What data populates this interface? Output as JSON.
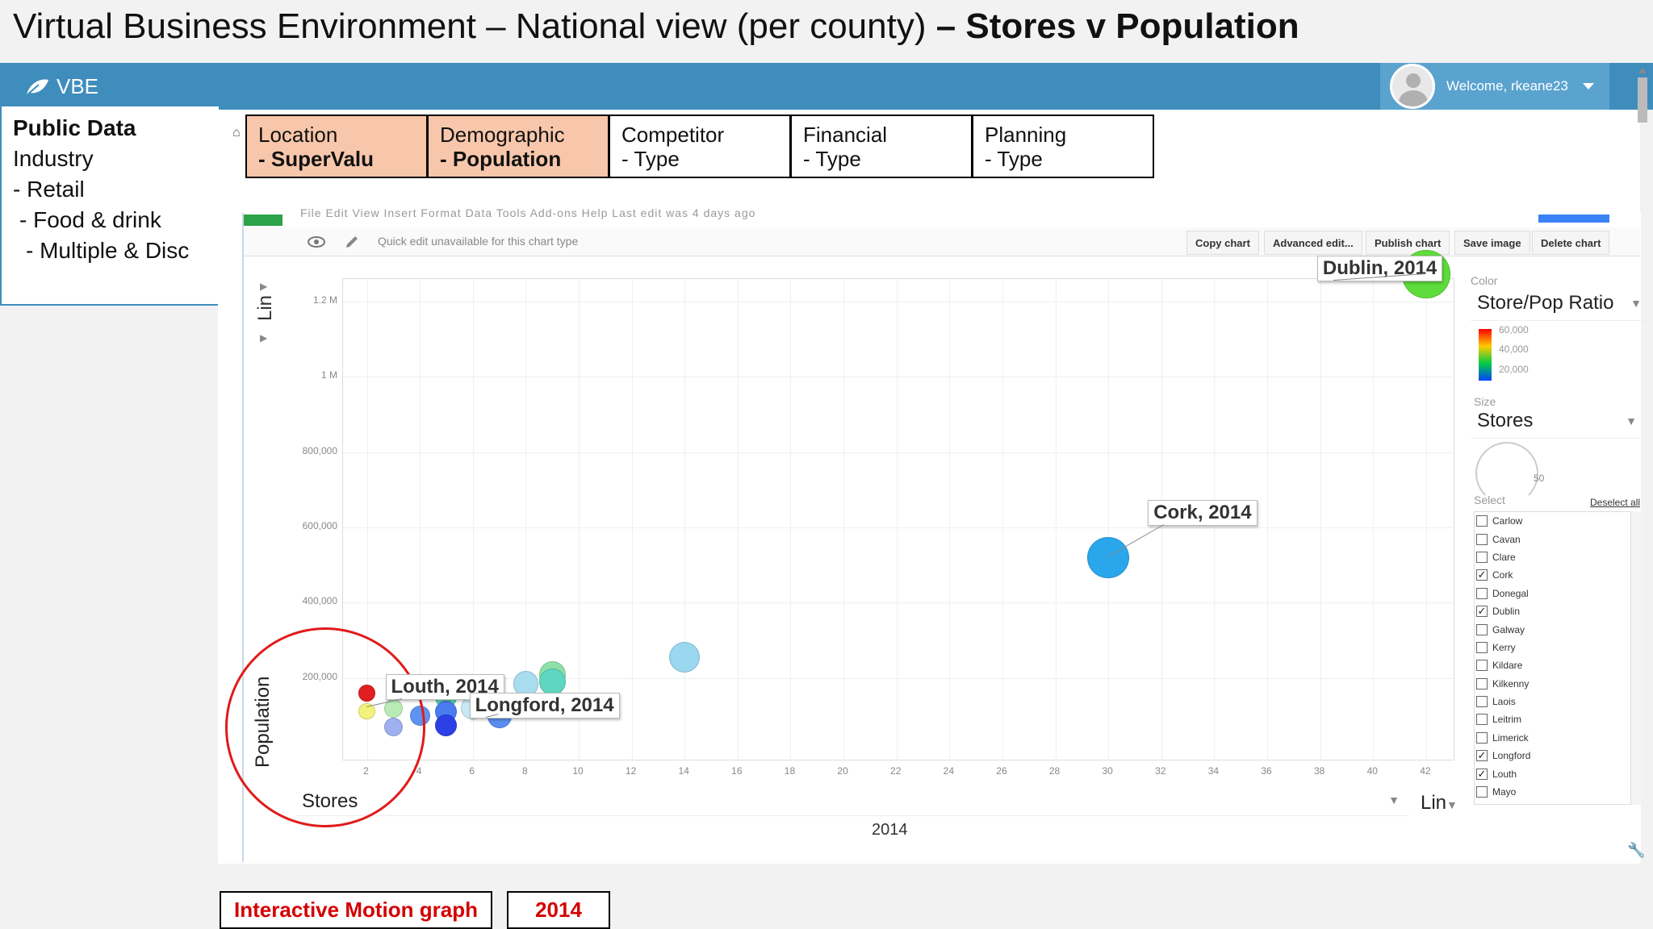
{
  "slide": {
    "title_prefix": "Virtual Business Environment – National view (per county)",
    "title_bold": " – Stores v Population"
  },
  "topbar": {
    "brand": "VBE",
    "welcome": "Welcome, rkeane23"
  },
  "leftbox": {
    "heading": "Public Data",
    "lines": [
      "Industry",
      "- Retail",
      " - Food & drink",
      "  - Multiple & Disc"
    ]
  },
  "tabs": [
    {
      "title": "Location",
      "sub": "- SuperValu"
    },
    {
      "title": "Demographic",
      "sub": "- Population"
    },
    {
      "title": "Competitor",
      "sub": "- Type"
    },
    {
      "title": "Financial",
      "sub": "- Type"
    },
    {
      "title": "Planning",
      "sub": "- Type"
    }
  ],
  "toolbar": {
    "quick_edit": "Quick edit unavailable for this chart type",
    "buttons": [
      "Copy chart",
      "Advanced edit...",
      "Publish chart",
      "Save image",
      "Delete chart"
    ]
  },
  "chart_data": {
    "type": "scatter",
    "xlabel": "Stores",
    "ylabel": "Population",
    "x_scale": "Lin",
    "y_scale": "Lin",
    "time_label": "2014",
    "x_ticks": [
      2,
      4,
      6,
      8,
      10,
      12,
      14,
      16,
      18,
      20,
      22,
      24,
      26,
      28,
      30,
      32,
      34,
      36,
      38,
      40,
      42
    ],
    "y_ticks": [
      "200,000",
      "400,000",
      "600,000",
      "800,000",
      "1 M",
      "1.2 M"
    ],
    "y_tick_values": [
      200000,
      400000,
      600000,
      800000,
      1000000,
      1200000
    ],
    "xlim": [
      1.1,
      43.1
    ],
    "ylim": [
      -21000,
      1260000
    ],
    "color_by": "Store/Pop Ratio",
    "color_scale_ticks": [
      "60,000",
      "40,000",
      "20,000"
    ],
    "size_by": "Stores",
    "size_legend": "50",
    "labels": [
      {
        "text": "Dublin, 2014",
        "x": 42,
        "y": 1273000
      },
      {
        "text": "Cork, 2014",
        "x": 30,
        "y": 520000
      },
      {
        "text": "Louth, 2014",
        "x": 2,
        "y": 123000
      },
      {
        "text": "Longford, 2014",
        "x": 7,
        "y": 103000
      }
    ],
    "points": [
      {
        "x": 42,
        "y": 1273000,
        "color": "#5edc3c",
        "size": 42
      },
      {
        "x": 30,
        "y": 520000,
        "color": "#2aa7ec",
        "size": 30
      },
      {
        "x": 14,
        "y": 255000,
        "color": "#9ad8f0",
        "size": 14
      },
      {
        "x": 9,
        "y": 210000,
        "color": "#8fe0a8",
        "size": 9
      },
      {
        "x": 9,
        "y": 190000,
        "color": "#5fd6c0",
        "size": 9
      },
      {
        "x": 8,
        "y": 185000,
        "color": "#a8dcef",
        "size": 8
      },
      {
        "x": 7,
        "y": 110000,
        "color": "#b5d8ee",
        "size": 7
      },
      {
        "x": 7,
        "y": 100000,
        "color": "#5b8ef0",
        "size": 7
      },
      {
        "x": 6,
        "y": 120000,
        "color": "#c9e8f3",
        "size": 6
      },
      {
        "x": 5,
        "y": 150000,
        "color": "#57d5a8",
        "size": 5
      },
      {
        "x": 5,
        "y": 110000,
        "color": "#4a7cf0",
        "size": 5
      },
      {
        "x": 5,
        "y": 75000,
        "color": "#2c40e6",
        "size": 5
      },
      {
        "x": 4,
        "y": 100000,
        "color": "#5f93f0",
        "size": 4
      },
      {
        "x": 3,
        "y": 120000,
        "color": "#b9ecb4",
        "size": 3
      },
      {
        "x": 3,
        "y": 70000,
        "color": "#9eb0f0",
        "size": 3
      },
      {
        "x": 2,
        "y": 160000,
        "color": "#e02020",
        "size": 2
      },
      {
        "x": 2,
        "y": 112000,
        "color": "#f3f27a",
        "size": 2
      }
    ]
  },
  "side": {
    "color_cap": "Color",
    "size_cap": "Size",
    "select_cap": "Select",
    "deselect": "Deselect all",
    "counties": [
      {
        "name": "Carlow",
        "checked": false
      },
      {
        "name": "Cavan",
        "checked": false
      },
      {
        "name": "Clare",
        "checked": false
      },
      {
        "name": "Cork",
        "checked": true
      },
      {
        "name": "Donegal",
        "checked": false
      },
      {
        "name": "Dublin",
        "checked": true
      },
      {
        "name": "Galway",
        "checked": false
      },
      {
        "name": "Kerry",
        "checked": false
      },
      {
        "name": "Kildare",
        "checked": false
      },
      {
        "name": "Kilkenny",
        "checked": false
      },
      {
        "name": "Laois",
        "checked": false
      },
      {
        "name": "Leitrim",
        "checked": false
      },
      {
        "name": "Limerick",
        "checked": false
      },
      {
        "name": "Longford",
        "checked": true
      },
      {
        "name": "Louth",
        "checked": true
      },
      {
        "name": "Mayo",
        "checked": false
      }
    ]
  },
  "bottom": {
    "motion_label": "Interactive Motion graph",
    "year_label": "2014"
  },
  "menu_ghost": "File   Edit   View   Insert   Format   Data   Tools   Add-ons   Help   Last edit was 4 days ago"
}
